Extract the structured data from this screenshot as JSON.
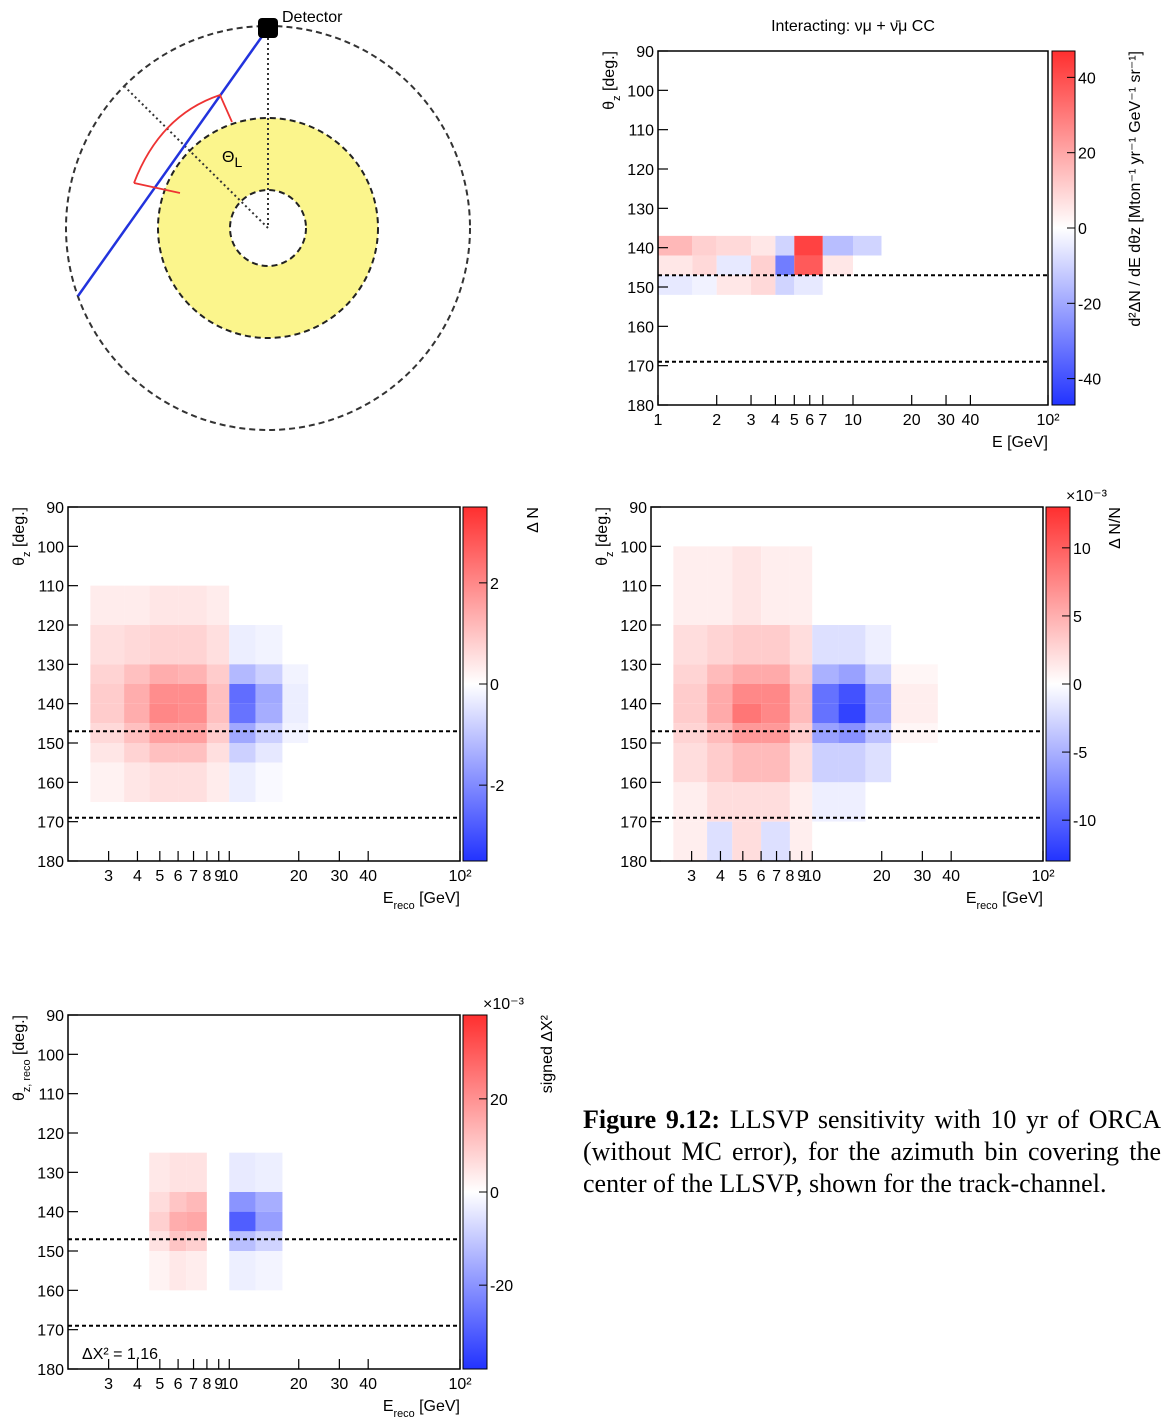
{
  "diagram": {
    "detector_label": "Detector",
    "angle_label": {
      "text": "Θ",
      "sub": "L"
    }
  },
  "chart_data": [
    {
      "type": "heatmap",
      "title": "Interacting: νμ + ν̄μ CC",
      "xlabel": "E [GeV]",
      "ylabel": {
        "text": "θ",
        "sub": "z",
        "after": " [deg.]"
      },
      "colorbar_label": "d²ΔN / dE dθz [Mton⁻¹ yr⁻¹ GeV⁻¹ sr⁻¹]",
      "log_x": true,
      "xlim": [
        1,
        100
      ],
      "ylim": [
        90,
        180
      ],
      "xticks": [
        1,
        2,
        3,
        4,
        5,
        6,
        7,
        10,
        20,
        30,
        40,
        {
          "value": 100,
          "label": "10²"
        }
      ],
      "yticks": [
        90,
        100,
        110,
        120,
        130,
        140,
        150,
        160,
        170,
        180
      ],
      "zlim": [
        -47,
        47
      ],
      "zticks": [
        -40,
        -20,
        0,
        20,
        40
      ],
      "hlines": [
        147,
        169
      ],
      "x_edges": [
        1,
        1.5,
        2,
        3,
        4,
        5,
        7,
        10,
        14
      ],
      "y_edges": [
        137,
        142,
        147,
        152
      ],
      "z": [
        [
          15,
          10,
          8,
          5,
          -10,
          40,
          -15,
          -10
        ],
        [
          5,
          8,
          -5,
          10,
          -30,
          35,
          5,
          0
        ],
        [
          -5,
          -3,
          5,
          8,
          -10,
          -5,
          0,
          0
        ]
      ]
    },
    {
      "type": "heatmap",
      "xlabel": {
        "text": "E",
        "sub": "reco",
        "after": " [GeV]"
      },
      "ylabel": {
        "text": "θ",
        "sub": "z",
        "after": " [deg.]"
      },
      "colorbar_label": "Δ N",
      "log_x": true,
      "xlim": [
        2,
        100
      ],
      "ylim": [
        90,
        180
      ],
      "xticks": [
        3,
        4,
        5,
        6,
        7,
        8,
        9,
        10,
        20,
        30,
        40,
        {
          "value": 100,
          "label": "10²"
        }
      ],
      "yticks": [
        90,
        100,
        110,
        120,
        130,
        140,
        150,
        160,
        170,
        180
      ],
      "zlim": [
        -3.5,
        3.5
      ],
      "zticks": [
        -2,
        0,
        2
      ],
      "hlines": [
        147,
        169
      ],
      "x_edges": [
        2.5,
        3.5,
        4.5,
        6,
        8,
        10,
        13,
        17,
        22
      ],
      "y_edges": [
        110,
        120,
        130,
        135,
        140,
        145,
        150,
        155,
        165
      ],
      "z": [
        [
          0.3,
          0.3,
          0.4,
          0.4,
          0.3,
          0,
          0,
          0
        ],
        [
          0.5,
          0.6,
          0.7,
          0.7,
          0.5,
          -0.3,
          -0.2,
          0
        ],
        [
          0.7,
          1,
          1.3,
          1.2,
          0.8,
          -1.2,
          -0.8,
          -0.2
        ],
        [
          0.8,
          1.3,
          1.8,
          1.8,
          1,
          -2.5,
          -1.5,
          -0.3
        ],
        [
          0.8,
          1.3,
          1.9,
          1.8,
          1,
          -2.4,
          -1.4,
          -0.3
        ],
        [
          0.6,
          1,
          1.5,
          1.5,
          0.8,
          -1.5,
          -0.8,
          -0.2
        ],
        [
          0.4,
          0.7,
          1,
          1,
          0.5,
          -0.8,
          -0.4,
          0
        ],
        [
          0.2,
          0.4,
          0.5,
          0.5,
          0.3,
          -0.3,
          -0.1,
          0
        ]
      ]
    },
    {
      "type": "heatmap",
      "xlabel": {
        "text": "E",
        "sub": "reco",
        "after": " [GeV]"
      },
      "ylabel": {
        "text": "θ",
        "sub": "z",
        "after": " [deg.]"
      },
      "colorbar_label": "Δ N/N",
      "colorbar_exponent": "×10⁻³",
      "log_x": true,
      "xlim": [
        2,
        100
      ],
      "ylim": [
        90,
        180
      ],
      "xticks": [
        3,
        4,
        5,
        6,
        7,
        8,
        9,
        10,
        20,
        30,
        40,
        {
          "value": 100,
          "label": "10²"
        }
      ],
      "yticks": [
        90,
        100,
        110,
        120,
        130,
        140,
        150,
        160,
        170,
        180
      ],
      "zlim": [
        -13,
        13
      ],
      "zticks": [
        -10,
        -5,
        0,
        5,
        10
      ],
      "hlines": [
        147,
        169
      ],
      "x_edges": [
        2.5,
        3.5,
        4.5,
        6,
        8,
        10,
        13,
        17,
        22,
        35
      ],
      "y_edges": [
        100,
        120,
        130,
        135,
        140,
        145,
        150,
        160,
        170,
        180
      ],
      "z": [
        [
          1,
          1,
          1.5,
          1,
          1,
          0,
          0,
          0,
          0
        ],
        [
          2,
          2.5,
          3,
          3,
          2,
          -2,
          -2,
          -1,
          0
        ],
        [
          2.5,
          4,
          5,
          5,
          3,
          -5,
          -6,
          -3,
          0.5
        ],
        [
          3,
          5,
          7,
          7,
          4,
          -9,
          -11,
          -6,
          1
        ],
        [
          3,
          5,
          8,
          7,
          4,
          -9,
          -12,
          -6,
          1
        ],
        [
          2.5,
          4,
          6,
          6,
          3,
          -6,
          -7,
          -4,
          0.5
        ],
        [
          2,
          3,
          4,
          4,
          2,
          -3,
          -3,
          -2,
          0
        ],
        [
          1,
          2,
          2,
          2,
          1,
          -1,
          -1,
          0,
          0
        ],
        [
          1,
          -2,
          2,
          -2,
          1,
          0,
          0,
          0,
          0
        ]
      ]
    },
    {
      "type": "heatmap",
      "xlabel": {
        "text": "E",
        "sub": "reco",
        "after": " [GeV]"
      },
      "ylabel": {
        "text": "θ",
        "sub": "z, reco",
        "after": " [deg.]"
      },
      "colorbar_label": "signed ΔX²",
      "colorbar_exponent": "×10⁻³",
      "annotation": "ΔX² = 1.16",
      "log_x": true,
      "xlim": [
        2,
        100
      ],
      "ylim": [
        90,
        180
      ],
      "xticks": [
        3,
        4,
        5,
        6,
        7,
        8,
        9,
        10,
        20,
        30,
        40,
        {
          "value": 100,
          "label": "10²"
        }
      ],
      "yticks": [
        90,
        100,
        110,
        120,
        130,
        140,
        150,
        160,
        170,
        180
      ],
      "zlim": [
        -38,
        38
      ],
      "zticks": [
        -20,
        0,
        20
      ],
      "hlines": [
        147,
        169
      ],
      "x_edges": [
        4.5,
        5.5,
        6.5,
        8,
        10,
        13,
        17
      ],
      "y_edges": [
        125,
        135,
        140,
        145,
        150,
        160
      ],
      "z": [
        [
          4,
          5,
          5,
          0,
          -4,
          -3
        ],
        [
          6,
          10,
          12,
          0,
          -20,
          -15
        ],
        [
          8,
          14,
          15,
          0,
          -30,
          -18
        ],
        [
          5,
          10,
          8,
          0,
          -12,
          -8
        ],
        [
          2,
          4,
          3,
          0,
          -3,
          -2
        ]
      ]
    }
  ],
  "caption": {
    "label": "Figure 9.12:",
    "text": "LLSVP sensitivity with 10 yr of ORCA (without MC error), for the azimuth bin covering the center of the LLSVP, shown for the track-channel."
  }
}
